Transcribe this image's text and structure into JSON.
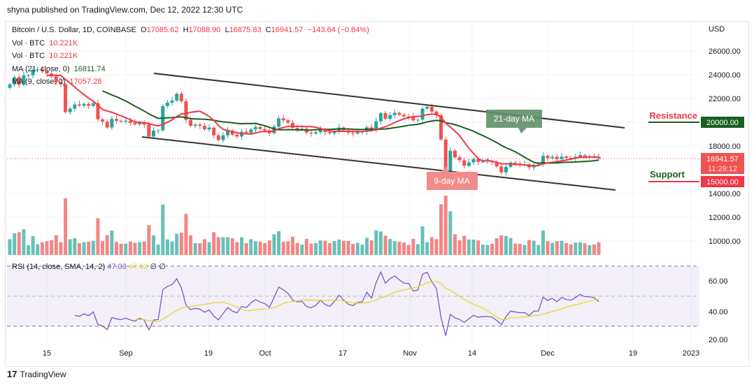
{
  "header": {
    "published": "shyna published on TradingView.com, Dec 12, 2022 12:30 UTC"
  },
  "legend": {
    "symbol": "Bitcoin / U.S. Dollar, 1D, COINBASE",
    "o_label": "O",
    "o": "17085.62",
    "h_label": "H",
    "h": "17088.90",
    "l_label": "L",
    "l": "16875.83",
    "c_label": "C",
    "c": "16941.57",
    "change": "−143.64 (−0.84%)",
    "vol1_label": "Vol · BTC",
    "vol1": "10.221K",
    "vol2_label": "Vol · BTC",
    "vol2": "10.221K",
    "ma21_label": "MA (21, close, 0)",
    "ma21": "16811.74",
    "ma9_label": "MA (9, close, 0)",
    "ma9": "17057.28"
  },
  "rsi_legend": {
    "label": "RSI (14, close, SMA, 14, 2)",
    "rsi": "47.03",
    "sma": "47.92",
    "v1": "∅",
    "v2": "∅"
  },
  "price_axis": {
    "currency": "USD",
    "ticks": [
      "26000.00",
      "24000.00",
      "22000.00",
      "20000.00",
      "18000.00",
      "14000.00",
      "12000.00",
      "10000.00"
    ],
    "last_price": "16941.57",
    "countdown": "11:29:12",
    "resistance_tag": "20000.00",
    "support_tag": "15000.00"
  },
  "rsi_axis": {
    "ticks": [
      "60.00",
      "40.00",
      "20.00"
    ]
  },
  "time_axis": {
    "ticks": [
      "15",
      "Sep",
      "19",
      "Oct",
      "17",
      "Nov",
      "14",
      "Dec",
      "19",
      "2023"
    ]
  },
  "annotations": {
    "ma21": "21-day MA",
    "ma9": "9-day MA",
    "resistance": "Resistance",
    "support": "Support"
  },
  "colors": {
    "up": "#26a69a",
    "down": "#ef5350",
    "ma21": "#1b5e20",
    "ma9": "#f23645",
    "rsi": "#7e57c2",
    "rsi_sma": "#e8d82a",
    "resistance": "#1b5e20",
    "support": "#f23645"
  },
  "footer": {
    "brand": "TradingView"
  },
  "chart_data": {
    "type": "candlestick",
    "start_date": "2022-08-07",
    "interval": "1D",
    "first_open": 22900,
    "closes": [
      23200,
      23800,
      23150,
      23950,
      23950,
      24400,
      24450,
      24300,
      24100,
      23850,
      23350,
      23200,
      20850,
      21150,
      21500,
      21400,
      21550,
      21380,
      21600,
      20250,
      20050,
      19550,
      20280,
      20120,
      20050,
      20130,
      19950,
      19830,
      19980,
      19800,
      18800,
      19290,
      19320,
      21360,
      21650,
      21830,
      22400,
      21770,
      20200,
      19700,
      19800,
      19700,
      19400,
      19550,
      18900,
      18500,
      18900,
      19300,
      18950,
      18800,
      19200,
      19100,
      19400,
      19600,
      19430,
      19320,
      19080,
      19630,
      20330,
      20160,
      19960,
      19530,
      19420,
      19450,
      19130,
      19050,
      19160,
      19400,
      19170,
      19070,
      19270,
      19550,
      19330,
      19120,
      19050,
      19170,
      19200,
      19570,
      19330,
      20080,
      20770,
      20290,
      20600,
      20800,
      20630,
      20490,
      20480,
      20160,
      20210,
      21150,
      21300,
      20900,
      20600,
      18550,
      15900,
      17600,
      17050,
      16800,
      16330,
      16620,
      16900,
      16660,
      16690,
      16700,
      16630,
      16280,
      15780,
      16240,
      16600,
      16520,
      16450,
      16460,
      16200,
      16430,
      16440,
      17170,
      16970,
      17090,
      16890,
      17110,
      17000,
      16960,
      17090,
      17230,
      17130,
      17130,
      17090,
      16940
    ],
    "price_range": [
      9000,
      27000
    ],
    "rsi_range": [
      20,
      70
    ],
    "resistance": 20000,
    "support": 15000,
    "moving_averages": [
      9,
      21
    ],
    "rsi_period": 14
  }
}
